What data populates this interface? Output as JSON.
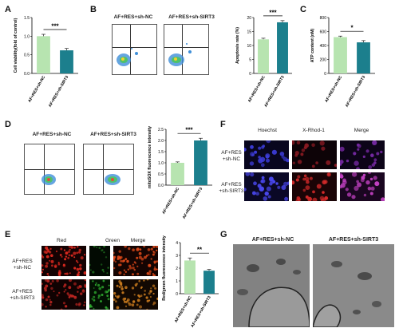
{
  "panels": {
    "A": "A",
    "B": "B",
    "C": "C",
    "D": "D",
    "E": "E",
    "F": "F",
    "G": "G"
  },
  "chart_data": [
    {
      "panel": "A",
      "type": "bar",
      "ylabel": "Cell viability(fold of control)",
      "categories": [
        "AF+RES+sh-NC",
        "AF+RES+sh-SIRT3"
      ],
      "values": [
        1.0,
        0.62
      ],
      "errors": [
        0.05,
        0.05
      ],
      "ylim": [
        0,
        1.5
      ],
      "yticks": [
        "0.0",
        "0.5",
        "1.0",
        "1.5"
      ],
      "significance": "***",
      "colors": [
        "#b7e4b0",
        "#1c7f8d"
      ]
    },
    {
      "panel": "B",
      "type": "bar",
      "ylabel": "Apoptosis rate (%)",
      "categories": [
        "AF+RES+sh-NC",
        "AF+RES+sh-SIRT3"
      ],
      "values": [
        12.2,
        18.3
      ],
      "errors": [
        0.4,
        0.6
      ],
      "ylim": [
        0,
        20
      ],
      "yticks": [
        "0",
        "5",
        "10",
        "15",
        "20"
      ],
      "significance": "***",
      "colors": [
        "#b7e4b0",
        "#1c7f8d"
      ]
    },
    {
      "panel": "C",
      "type": "bar",
      "ylabel": "ATP content (nM)",
      "categories": [
        "AF+RES+sh-NC",
        "AF+RES+sh-SIRT3"
      ],
      "values": [
        520,
        445
      ],
      "errors": [
        15,
        25
      ],
      "ylim": [
        0,
        800
      ],
      "yticks": [
        "0",
        "200",
        "400",
        "600",
        "800"
      ],
      "significance": "*",
      "colors": [
        "#b7e4b0",
        "#1c7f8d"
      ]
    },
    {
      "panel": "D",
      "type": "bar",
      "ylabel": "mitoSOX fluorescence intensity",
      "categories": [
        "AF+RES+sh-NC",
        "AF+RES+sh-SIRT3"
      ],
      "values": [
        1.0,
        2.0
      ],
      "errors": [
        0.04,
        0.1
      ],
      "ylim": [
        0,
        2.5
      ],
      "yticks": [
        "0.0",
        "0.5",
        "1.0",
        "1.5",
        "2.0",
        "2.5"
      ],
      "significance": "***",
      "colors": [
        "#b7e4b0",
        "#1c7f8d"
      ]
    },
    {
      "panel": "E",
      "type": "bar",
      "ylabel": "Red/green fluorescence intensity",
      "categories": [
        "AF+RES+sh-NC",
        "AF+RES+sh-SIRT3"
      ],
      "values": [
        2.6,
        1.8
      ],
      "errors": [
        0.2,
        0.1
      ],
      "ylim": [
        0,
        4
      ],
      "yticks": [
        "0",
        "1",
        "2",
        "3",
        "4"
      ],
      "significance": "**",
      "colors": [
        "#b7e4b0",
        "#1c7f8d"
      ]
    }
  ],
  "flow": {
    "b_left_label": "AF+RES+sh-NC",
    "b_right_label": "AF+RES+sh-SIRT3",
    "d_left_label": "AF+RES+sh-NC",
    "d_right_label": "AF+RES+sh-SIRT3"
  },
  "panelF": {
    "cols": [
      "Hoechst",
      "X-Rhod-1",
      "Merge"
    ],
    "rows": [
      "AF+RES\n+sh-NC",
      "AF+RES\n+sh-SIRT3"
    ]
  },
  "panelE": {
    "cols": [
      "Red",
      "Green",
      "Merge"
    ],
    "rows": [
      "AF+RES\n+sh-NC",
      "AF+RES\n+sh-SIRT3"
    ]
  },
  "panelG": {
    "left_label": "AF+RES+sh-NC",
    "right_label": "AF+RES+sh-SIRT3"
  }
}
